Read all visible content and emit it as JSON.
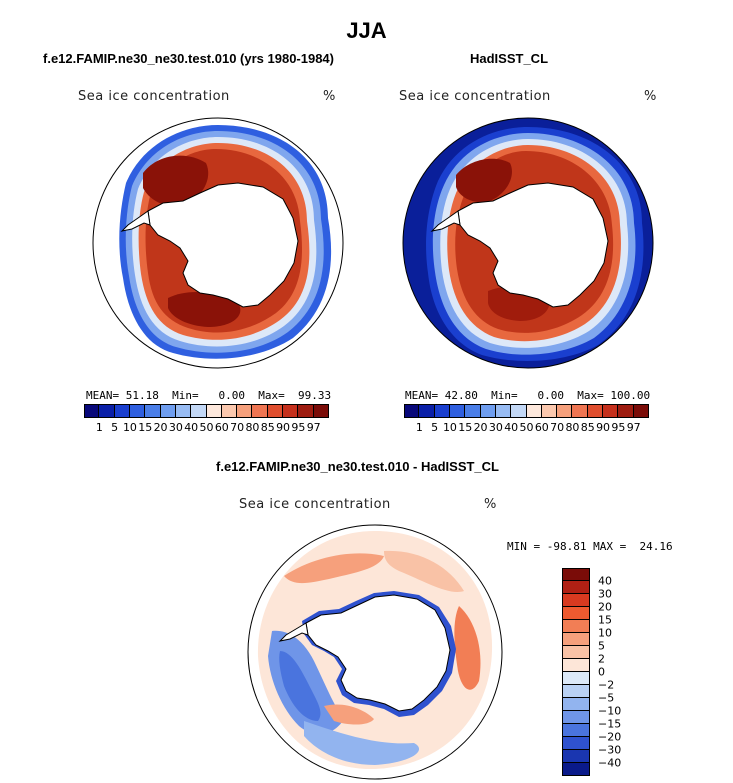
{
  "title": "JJA",
  "panels": {
    "model": {
      "title": "f.e12.FAMIP.ne30_ne30.test.010 (yrs 1980-1984)",
      "field_label": "Sea ice concentration",
      "units": "%",
      "stats": {
        "mean_label": "MEAN=",
        "mean": "51.18",
        "min_label": "Min=",
        "min": "0.00",
        "max_label": "Max=",
        "max": "99.33"
      }
    },
    "obs": {
      "title": "HadISST_CL",
      "field_label": "Sea ice concentration",
      "units": "%",
      "stats": {
        "mean_label": "MEAN=",
        "mean": "42.80",
        "min_label": "Min=",
        "min": "0.00",
        "max_label": "Max=",
        "max": "100.00"
      }
    },
    "diff": {
      "title": "f.e12.FAMIP.ne30_ne30.test.010 - HadISST_CL",
      "field_label": "Sea ice concentration",
      "units": "%",
      "minmax": "MIN = -98.81 MAX =  24.16"
    }
  },
  "colorbar_abs": {
    "ticks": [
      "1",
      "5",
      "10",
      "15",
      "20",
      "30",
      "40",
      "50",
      "60",
      "70",
      "80",
      "85",
      "90",
      "95",
      "97"
    ],
    "colors": [
      "#08087a",
      "#0a1fa8",
      "#1a3fcf",
      "#2f5fe0",
      "#4a7ee8",
      "#6f9ef0",
      "#98bcf4",
      "#c3d8f6",
      "#fde8dc",
      "#fbc8ae",
      "#f6a07c",
      "#ef7552",
      "#e04e2e",
      "#c5301c",
      "#9e1c10",
      "#7a0c08"
    ]
  },
  "colorbar_diff": {
    "ticks": [
      "40",
      "30",
      "20",
      "15",
      "10",
      "5",
      "2",
      "0",
      "−2",
      "−5",
      "−10",
      "−15",
      "−20",
      "−30",
      "−40"
    ],
    "colors": [
      "#7a0c08",
      "#b02014",
      "#d83a20",
      "#ee5a30",
      "#f27e55",
      "#f6a07c",
      "#f9c2a6",
      "#fde6d8",
      "#dce9f8",
      "#b9d1f4",
      "#92b4ef",
      "#6f95e8",
      "#4a74de",
      "#2f52cf",
      "#1a36b0",
      "#0a1a8a"
    ]
  },
  "map_colors": {
    "ice_core": "#8a1208",
    "ice_high": "#c0361a",
    "ice_mid": "#e8683f",
    "ice_edge_warm": "#f7b495",
    "ice_edge_pale": "#dde8f8",
    "ice_edge_cool": "#7fa6ee",
    "ice_edge_blue": "#2f5fe0",
    "open_ocean_obs": "#0a1f9a",
    "land": "#ffffff",
    "coast": "#000000"
  }
}
